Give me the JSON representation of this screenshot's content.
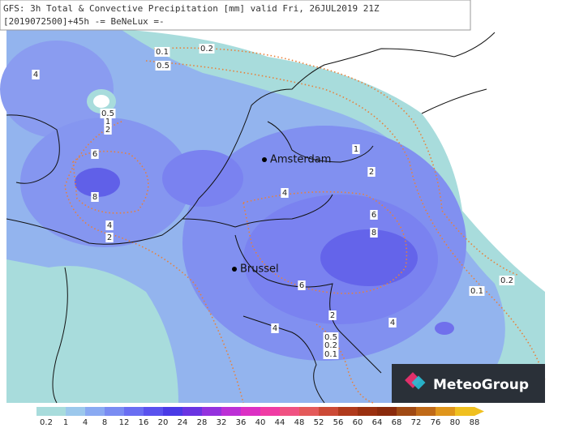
{
  "header": {
    "line1": "GFS: 3h Total & Convective Precipitation [mm] valid Fri, 26JUL2019 21Z",
    "line2": "[2019072500]+45h -= BeNeLux =-"
  },
  "cities": [
    {
      "name": "Amsterdam"
    },
    {
      "name": "Brussel"
    }
  ],
  "contour_labels": [
    0.2,
    0.1,
    0.5,
    4,
    0.5,
    1,
    2,
    6,
    8,
    1,
    2,
    4,
    6,
    8,
    4,
    2,
    6,
    0.1,
    0.2,
    2,
    4,
    4,
    0.5,
    0.2,
    0.1
  ],
  "colorbar": {
    "labels": [
      0.2,
      1,
      4,
      8,
      12,
      16,
      20,
      24,
      28,
      32,
      36,
      40,
      44,
      48,
      52,
      56,
      60,
      64,
      68,
      72,
      76,
      80,
      88
    ],
    "colors": [
      "#a8dcdc",
      "#9cc8ec",
      "#8aaaf2",
      "#7a8cf2",
      "#6a6ef2",
      "#5a52ee",
      "#4a3ae6",
      "#6a34e2",
      "#9432de",
      "#bc30d6",
      "#dc30c4",
      "#f03ca4",
      "#f05282",
      "#e45a5a",
      "#cc4a36",
      "#b03a1c",
      "#9a3010",
      "#8a2a0c",
      "#a04a14",
      "#c06a18",
      "#e0961c",
      "#f0c020"
    ]
  },
  "logo": {
    "text": "MeteoGroup"
  }
}
